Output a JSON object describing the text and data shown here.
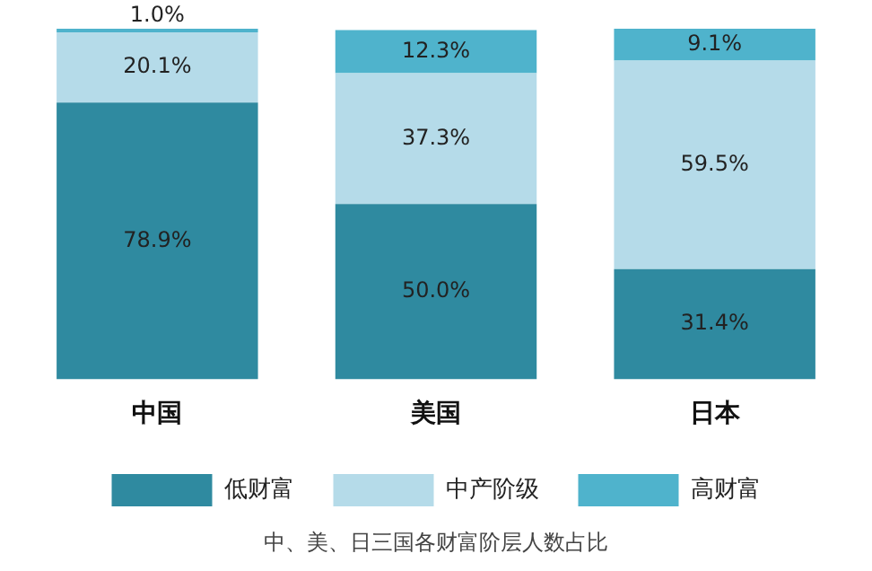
{
  "chart_data": {
    "type": "bar",
    "stacked": true,
    "title": "中、美、日三国各财富阶层人数占比",
    "categories": [
      "中国",
      "美国",
      "日本"
    ],
    "series": [
      {
        "name": "低财富",
        "color": "#2f8aa0",
        "values": [
          78.9,
          50.0,
          31.4
        ],
        "value_labels": [
          "78.9%",
          "50.0%",
          "31.4%"
        ]
      },
      {
        "name": "中产阶级",
        "color": "#b5dbe9",
        "values": [
          20.1,
          37.3,
          59.5
        ],
        "value_labels": [
          "20.1%",
          "37.3%",
          "59.5%"
        ]
      },
      {
        "name": "高财富",
        "color": "#4fb3cc",
        "values": [
          1.0,
          12.3,
          9.1
        ],
        "value_labels": [
          "1.0%",
          "12.3%",
          "9.1%"
        ]
      }
    ],
    "ylim": [
      0,
      100
    ],
    "tick_labels": "x",
    "grid": false,
    "legend": "bottom"
  }
}
